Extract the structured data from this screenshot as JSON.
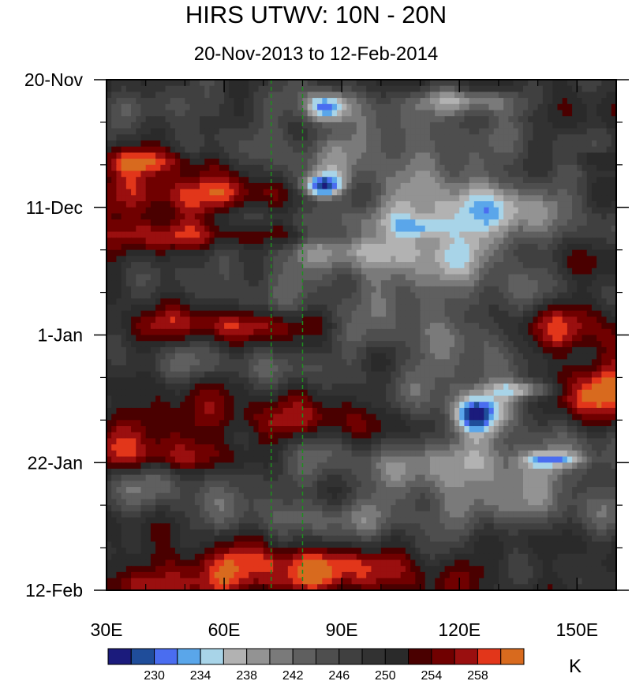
{
  "chart_data": {
    "type": "heatmap",
    "title": "HIRS UTWV: 10N - 20N",
    "subtitle": "20-Nov-2013 to 12-Feb-2014",
    "xlabel": "",
    "ylabel": "",
    "x_domain": [
      30,
      160
    ],
    "y_domain_days": [
      0,
      84
    ],
    "x_ticks": [
      {
        "value": 30,
        "label": "30E"
      },
      {
        "value": 60,
        "label": "60E"
      },
      {
        "value": 90,
        "label": "90E"
      },
      {
        "value": 120,
        "label": "120E"
      },
      {
        "value": 150,
        "label": "150E"
      }
    ],
    "x_minor_ticks": [
      40,
      50,
      70,
      80,
      100,
      110,
      130,
      140,
      160
    ],
    "y_ticks": [
      {
        "value": 0,
        "label": "20-Nov"
      },
      {
        "value": 21,
        "label": "11-Dec"
      },
      {
        "value": 42,
        "label": "1-Jan"
      },
      {
        "value": 63,
        "label": "22-Jan"
      },
      {
        "value": 84,
        "label": "12-Feb"
      }
    ],
    "y_minor_ticks": [
      7,
      14,
      28,
      35,
      49,
      56,
      70,
      77
    ],
    "reference_lines_x": [
      72,
      80
    ],
    "reference_line_color": "#1f8f1f",
    "colorbar": {
      "unit": "K",
      "levels": [
        228,
        230,
        232,
        234,
        236,
        238,
        240,
        242,
        244,
        246,
        248,
        250,
        252,
        254,
        256,
        258,
        260
      ],
      "labeled_levels": [
        "230",
        "234",
        "238",
        "242",
        "246",
        "250",
        "254",
        "258"
      ],
      "colors": [
        "#1b1b7c",
        "#1f4d9a",
        "#4a6df0",
        "#5aa6ea",
        "#a8d4e8",
        "#b2b2b2",
        "#939393",
        "#7a7a7a",
        "#5f5f5f",
        "#4e4e4e",
        "#404040",
        "#323232",
        "#2a2a2a",
        "#4a0000",
        "#700000",
        "#9a0f0f",
        "#e2361a",
        "#d86a1e"
      ]
    },
    "base_value": 250,
    "features": [
      {
        "x": 47,
        "y": 4,
        "sx": 14,
        "sy": 2.2,
        "amp": -5
      },
      {
        "x": 86,
        "y": 4.5,
        "sx": 4,
        "sy": 1.7,
        "amp": -18
      },
      {
        "x": 123,
        "y": 3.5,
        "sx": 9,
        "sy": 1.5,
        "amp": -12
      },
      {
        "x": 97,
        "y": 10,
        "sx": 20,
        "sy": 5,
        "amp": -6
      },
      {
        "x": 120,
        "y": 14,
        "sx": 35,
        "sy": 4,
        "amp": -4
      },
      {
        "x": 85,
        "y": 17.5,
        "sx": 3.5,
        "sy": 1.4,
        "amp": -19
      },
      {
        "x": 115,
        "y": 24,
        "sx": 25,
        "sy": 4,
        "amp": -10
      },
      {
        "x": 110,
        "y": 24.5,
        "sx": 5,
        "sy": 1.2,
        "amp": -8
      },
      {
        "x": 126,
        "y": 20.5,
        "sx": 10,
        "sy": 2.5,
        "amp": -6
      },
      {
        "x": 80,
        "y": 28,
        "sx": 26,
        "sy": 4,
        "amp": -5
      },
      {
        "x": 118,
        "y": 34,
        "sx": 30,
        "sy": 7,
        "amp": -7
      },
      {
        "x": 95,
        "y": 41,
        "sx": 15,
        "sy": 2,
        "amp": -5
      },
      {
        "x": 60,
        "y": 47,
        "sx": 25,
        "sy": 2,
        "amp": -4
      },
      {
        "x": 125,
        "y": 53,
        "sx": 14,
        "sy": 8,
        "amp": -9
      },
      {
        "x": 124,
        "y": 55,
        "sx": 4,
        "sy": 2,
        "amp": -14
      },
      {
        "x": 137,
        "y": 51,
        "sx": 6,
        "sy": 1,
        "amp": -10
      },
      {
        "x": 130,
        "y": 63,
        "sx": 30,
        "sy": 3,
        "amp": -8
      },
      {
        "x": 144,
        "y": 62.5,
        "sx": 5,
        "sy": 0.8,
        "amp": -10
      },
      {
        "x": 75,
        "y": 61,
        "sx": 18,
        "sy": 3,
        "amp": -5
      },
      {
        "x": 45,
        "y": 67,
        "sx": 18,
        "sy": 3,
        "amp": -5
      },
      {
        "x": 130,
        "y": 70,
        "sx": 35,
        "sy": 3,
        "amp": -6
      },
      {
        "x": 90,
        "y": 72.5,
        "sx": 25,
        "sy": 2,
        "amp": -4
      },
      {
        "x": 40,
        "y": 13.5,
        "sx": 10,
        "sy": 1.5,
        "amp": 8
      },
      {
        "x": 50,
        "y": 19,
        "sx": 22,
        "sy": 2.5,
        "amp": 9
      },
      {
        "x": 75,
        "y": 25.5,
        "sx": 25,
        "sy": 1.5,
        "amp": 8
      },
      {
        "x": 70,
        "y": 40.5,
        "sx": 25,
        "sy": 1.8,
        "amp": 8
      },
      {
        "x": 145,
        "y": 41,
        "sx": 14,
        "sy": 3.5,
        "amp": 9
      },
      {
        "x": 155,
        "y": 51,
        "sx": 10,
        "sy": 3.5,
        "amp": 11
      },
      {
        "x": 70,
        "y": 57,
        "sx": 40,
        "sy": 3,
        "amp": 6
      },
      {
        "x": 50,
        "y": 62,
        "sx": 20,
        "sy": 2,
        "amp": 7
      },
      {
        "x": 75,
        "y": 80,
        "sx": 25,
        "sy": 2,
        "amp": 9
      },
      {
        "x": 60,
        "y": 83,
        "sx": 30,
        "sy": 1.5,
        "amp": 6
      },
      {
        "x": 150,
        "y": 30,
        "sx": 12,
        "sy": 3,
        "amp": 6
      },
      {
        "x": 155,
        "y": 13,
        "sx": 6,
        "sy": 1.2,
        "amp": 6
      },
      {
        "x": 45,
        "y": 26,
        "sx": 20,
        "sy": 3,
        "amp": 4
      }
    ]
  }
}
